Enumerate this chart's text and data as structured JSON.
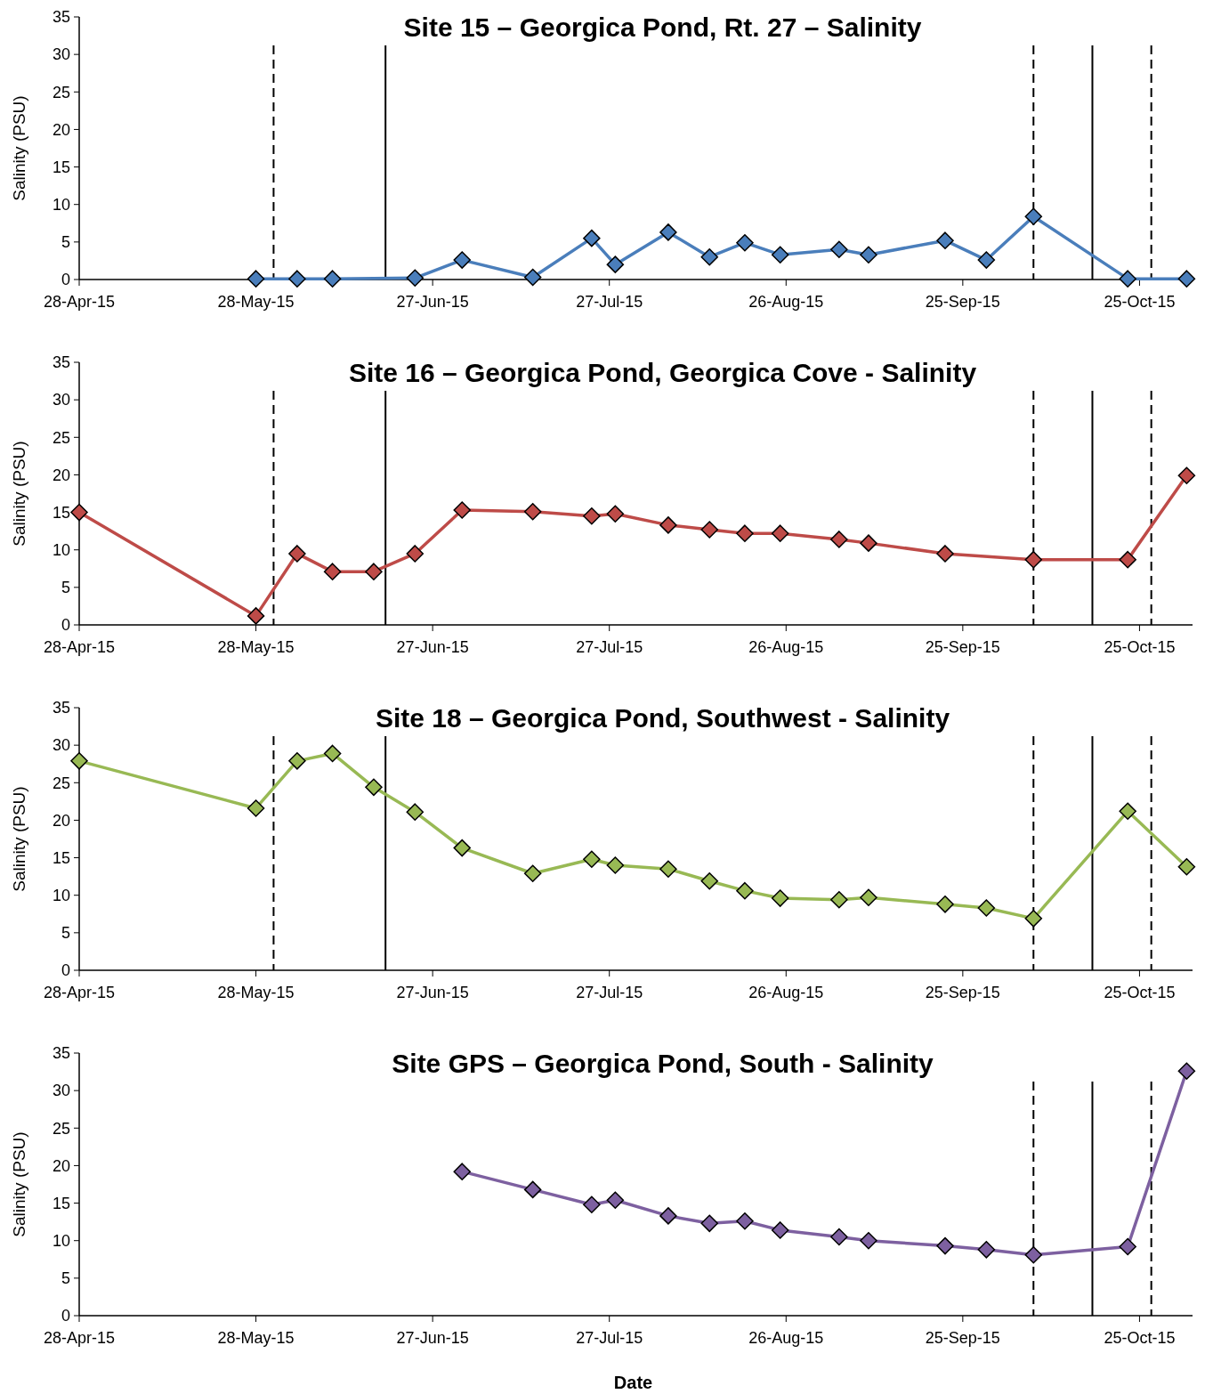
{
  "chart_data": [
    {
      "type": "line",
      "title": "Site 15 – Georgica Pond, Rt. 27 – Salinity",
      "ylabel": "Salinity (PSU)",
      "marker": "diamond",
      "line_style": "solid",
      "grid": false,
      "xlim": [
        "2015-04-28",
        "2015-11-03"
      ],
      "ylim": [
        0,
        35
      ],
      "yticks": [
        0,
        5,
        10,
        15,
        20,
        25,
        30,
        35
      ],
      "xticks": [
        {
          "value": "2015-04-28",
          "label": "28-Apr-15"
        },
        {
          "value": "2015-05-28",
          "label": "28-May-15"
        },
        {
          "value": "2015-06-27",
          "label": "27-Jun-15"
        },
        {
          "value": "2015-07-27",
          "label": "27-Jul-15"
        },
        {
          "value": "2015-08-26",
          "label": "26-Aug-15"
        },
        {
          "value": "2015-09-25",
          "label": "25-Sep-15"
        },
        {
          "value": "2015-10-25",
          "label": "25-Oct-15"
        }
      ],
      "ref_lines": [
        {
          "axis": "x",
          "value": "2015-05-31",
          "line_style": "dashed",
          "color": "#000000"
        },
        {
          "axis": "x",
          "value": "2015-06-19",
          "line_style": "solid",
          "color": "#000000"
        },
        {
          "axis": "x",
          "value": "2015-10-07",
          "line_style": "dashed",
          "color": "#000000"
        },
        {
          "axis": "x",
          "value": "2015-10-17",
          "line_style": "solid",
          "color": "#000000"
        },
        {
          "axis": "x",
          "value": "2015-10-27",
          "line_style": "dashed",
          "color": "#000000"
        }
      ],
      "series": [
        {
          "color": "#4a7ebb",
          "x": [
            "2015-05-28",
            "2015-06-04",
            "2015-06-10",
            "2015-06-24",
            "2015-07-02",
            "2015-07-14",
            "2015-07-24",
            "2015-07-28",
            "2015-08-06",
            "2015-08-13",
            "2015-08-19",
            "2015-08-25",
            "2015-09-04",
            "2015-09-09",
            "2015-09-22",
            "2015-09-29",
            "2015-10-07",
            "2015-10-23",
            "2015-11-02"
          ],
          "values": [
            0.1,
            0.1,
            0.1,
            0.2,
            2.6,
            0.3,
            5.5,
            2.0,
            6.3,
            3.0,
            4.9,
            3.3,
            4.0,
            3.3,
            5.2,
            2.6,
            8.4,
            0.1,
            0.1
          ]
        }
      ]
    },
    {
      "type": "line",
      "title": "Site 16 – Georgica Pond, Georgica Cove - Salinity",
      "ylabel": "Salinity (PSU)",
      "marker": "diamond",
      "line_style": "solid",
      "grid": false,
      "xlim": [
        "2015-04-28",
        "2015-11-03"
      ],
      "ylim": [
        0,
        35
      ],
      "yticks": [
        0,
        5,
        10,
        15,
        20,
        25,
        30,
        35
      ],
      "xticks": [
        {
          "value": "2015-04-28",
          "label": "28-Apr-15"
        },
        {
          "value": "2015-05-28",
          "label": "28-May-15"
        },
        {
          "value": "2015-06-27",
          "label": "27-Jun-15"
        },
        {
          "value": "2015-07-27",
          "label": "27-Jul-15"
        },
        {
          "value": "2015-08-26",
          "label": "26-Aug-15"
        },
        {
          "value": "2015-09-25",
          "label": "25-Sep-15"
        },
        {
          "value": "2015-10-25",
          "label": "25-Oct-15"
        }
      ],
      "ref_lines": [
        {
          "axis": "x",
          "value": "2015-05-31",
          "line_style": "dashed",
          "color": "#000000"
        },
        {
          "axis": "x",
          "value": "2015-06-19",
          "line_style": "solid",
          "color": "#000000"
        },
        {
          "axis": "x",
          "value": "2015-10-07",
          "line_style": "dashed",
          "color": "#000000"
        },
        {
          "axis": "x",
          "value": "2015-10-17",
          "line_style": "solid",
          "color": "#000000"
        },
        {
          "axis": "x",
          "value": "2015-10-27",
          "line_style": "dashed",
          "color": "#000000"
        }
      ],
      "series": [
        {
          "color": "#be4b48",
          "x": [
            "2015-04-28",
            "2015-05-28",
            "2015-06-04",
            "2015-06-10",
            "2015-06-17",
            "2015-06-24",
            "2015-07-02",
            "2015-07-14",
            "2015-07-24",
            "2015-07-28",
            "2015-08-06",
            "2015-08-13",
            "2015-08-19",
            "2015-08-25",
            "2015-09-04",
            "2015-09-09",
            "2015-09-22",
            "2015-10-07",
            "2015-10-23",
            "2015-11-02"
          ],
          "values": [
            15.0,
            1.2,
            9.5,
            7.1,
            7.1,
            9.5,
            15.3,
            15.1,
            14.5,
            14.8,
            13.3,
            12.7,
            12.2,
            12.2,
            11.4,
            10.9,
            9.5,
            8.7,
            8.7,
            19.9
          ]
        }
      ]
    },
    {
      "type": "line",
      "title": "Site 18 – Georgica Pond, Southwest - Salinity",
      "ylabel": "Salinity (PSU)",
      "marker": "diamond",
      "line_style": "solid",
      "grid": false,
      "xlim": [
        "2015-04-28",
        "2015-11-03"
      ],
      "ylim": [
        0,
        35
      ],
      "yticks": [
        0,
        5,
        10,
        15,
        20,
        25,
        30,
        35
      ],
      "xticks": [
        {
          "value": "2015-04-28",
          "label": "28-Apr-15"
        },
        {
          "value": "2015-05-28",
          "label": "28-May-15"
        },
        {
          "value": "2015-06-27",
          "label": "27-Jun-15"
        },
        {
          "value": "2015-07-27",
          "label": "27-Jul-15"
        },
        {
          "value": "2015-08-26",
          "label": "26-Aug-15"
        },
        {
          "value": "2015-09-25",
          "label": "25-Sep-15"
        },
        {
          "value": "2015-10-25",
          "label": "25-Oct-15"
        }
      ],
      "ref_lines": [
        {
          "axis": "x",
          "value": "2015-05-31",
          "line_style": "dashed",
          "color": "#000000"
        },
        {
          "axis": "x",
          "value": "2015-06-19",
          "line_style": "solid",
          "color": "#000000"
        },
        {
          "axis": "x",
          "value": "2015-10-07",
          "line_style": "dashed",
          "color": "#000000"
        },
        {
          "axis": "x",
          "value": "2015-10-17",
          "line_style": "solid",
          "color": "#000000"
        },
        {
          "axis": "x",
          "value": "2015-10-27",
          "line_style": "dashed",
          "color": "#000000"
        }
      ],
      "series": [
        {
          "color": "#98b954",
          "x": [
            "2015-04-28",
            "2015-05-28",
            "2015-06-04",
            "2015-06-10",
            "2015-06-17",
            "2015-06-24",
            "2015-07-02",
            "2015-07-14",
            "2015-07-24",
            "2015-07-28",
            "2015-08-06",
            "2015-08-13",
            "2015-08-19",
            "2015-08-25",
            "2015-09-04",
            "2015-09-09",
            "2015-09-22",
            "2015-09-29",
            "2015-10-07",
            "2015-10-23",
            "2015-11-02"
          ],
          "values": [
            27.9,
            21.6,
            27.9,
            28.9,
            24.4,
            21.1,
            16.3,
            12.9,
            14.8,
            14.0,
            13.5,
            11.9,
            10.6,
            9.6,
            9.4,
            9.7,
            8.8,
            8.3,
            6.9,
            21.2,
            13.8
          ]
        }
      ]
    },
    {
      "type": "line",
      "title": "Site GPS – Georgica Pond, South - Salinity",
      "xlabel": "Date",
      "ylabel": "Salinity (PSU)",
      "marker": "diamond",
      "line_style": "solid",
      "grid": false,
      "xlim": [
        "2015-04-28",
        "2015-11-03"
      ],
      "ylim": [
        0,
        35
      ],
      "yticks": [
        0,
        5,
        10,
        15,
        20,
        25,
        30,
        35
      ],
      "xticks": [
        {
          "value": "2015-04-28",
          "label": "28-Apr-15"
        },
        {
          "value": "2015-05-28",
          "label": "28-May-15"
        },
        {
          "value": "2015-06-27",
          "label": "27-Jun-15"
        },
        {
          "value": "2015-07-27",
          "label": "27-Jul-15"
        },
        {
          "value": "2015-08-26",
          "label": "26-Aug-15"
        },
        {
          "value": "2015-09-25",
          "label": "25-Sep-15"
        },
        {
          "value": "2015-10-25",
          "label": "25-Oct-15"
        }
      ],
      "ref_lines": [
        {
          "axis": "x",
          "value": "2015-10-07",
          "line_style": "dashed",
          "color": "#000000"
        },
        {
          "axis": "x",
          "value": "2015-10-17",
          "line_style": "solid",
          "color": "#000000"
        },
        {
          "axis": "x",
          "value": "2015-10-27",
          "line_style": "dashed",
          "color": "#000000"
        }
      ],
      "series": [
        {
          "color": "#7d60a0",
          "x": [
            "2015-07-02",
            "2015-07-14",
            "2015-07-24",
            "2015-07-28",
            "2015-08-06",
            "2015-08-13",
            "2015-08-19",
            "2015-08-25",
            "2015-09-04",
            "2015-09-09",
            "2015-09-22",
            "2015-09-29",
            "2015-10-07",
            "2015-10-23",
            "2015-11-02"
          ],
          "values": [
            19.2,
            16.8,
            14.8,
            15.4,
            13.3,
            12.3,
            12.6,
            11.4,
            10.5,
            10.0,
            9.3,
            8.8,
            8.1,
            9.2,
            32.6
          ]
        }
      ]
    }
  ]
}
